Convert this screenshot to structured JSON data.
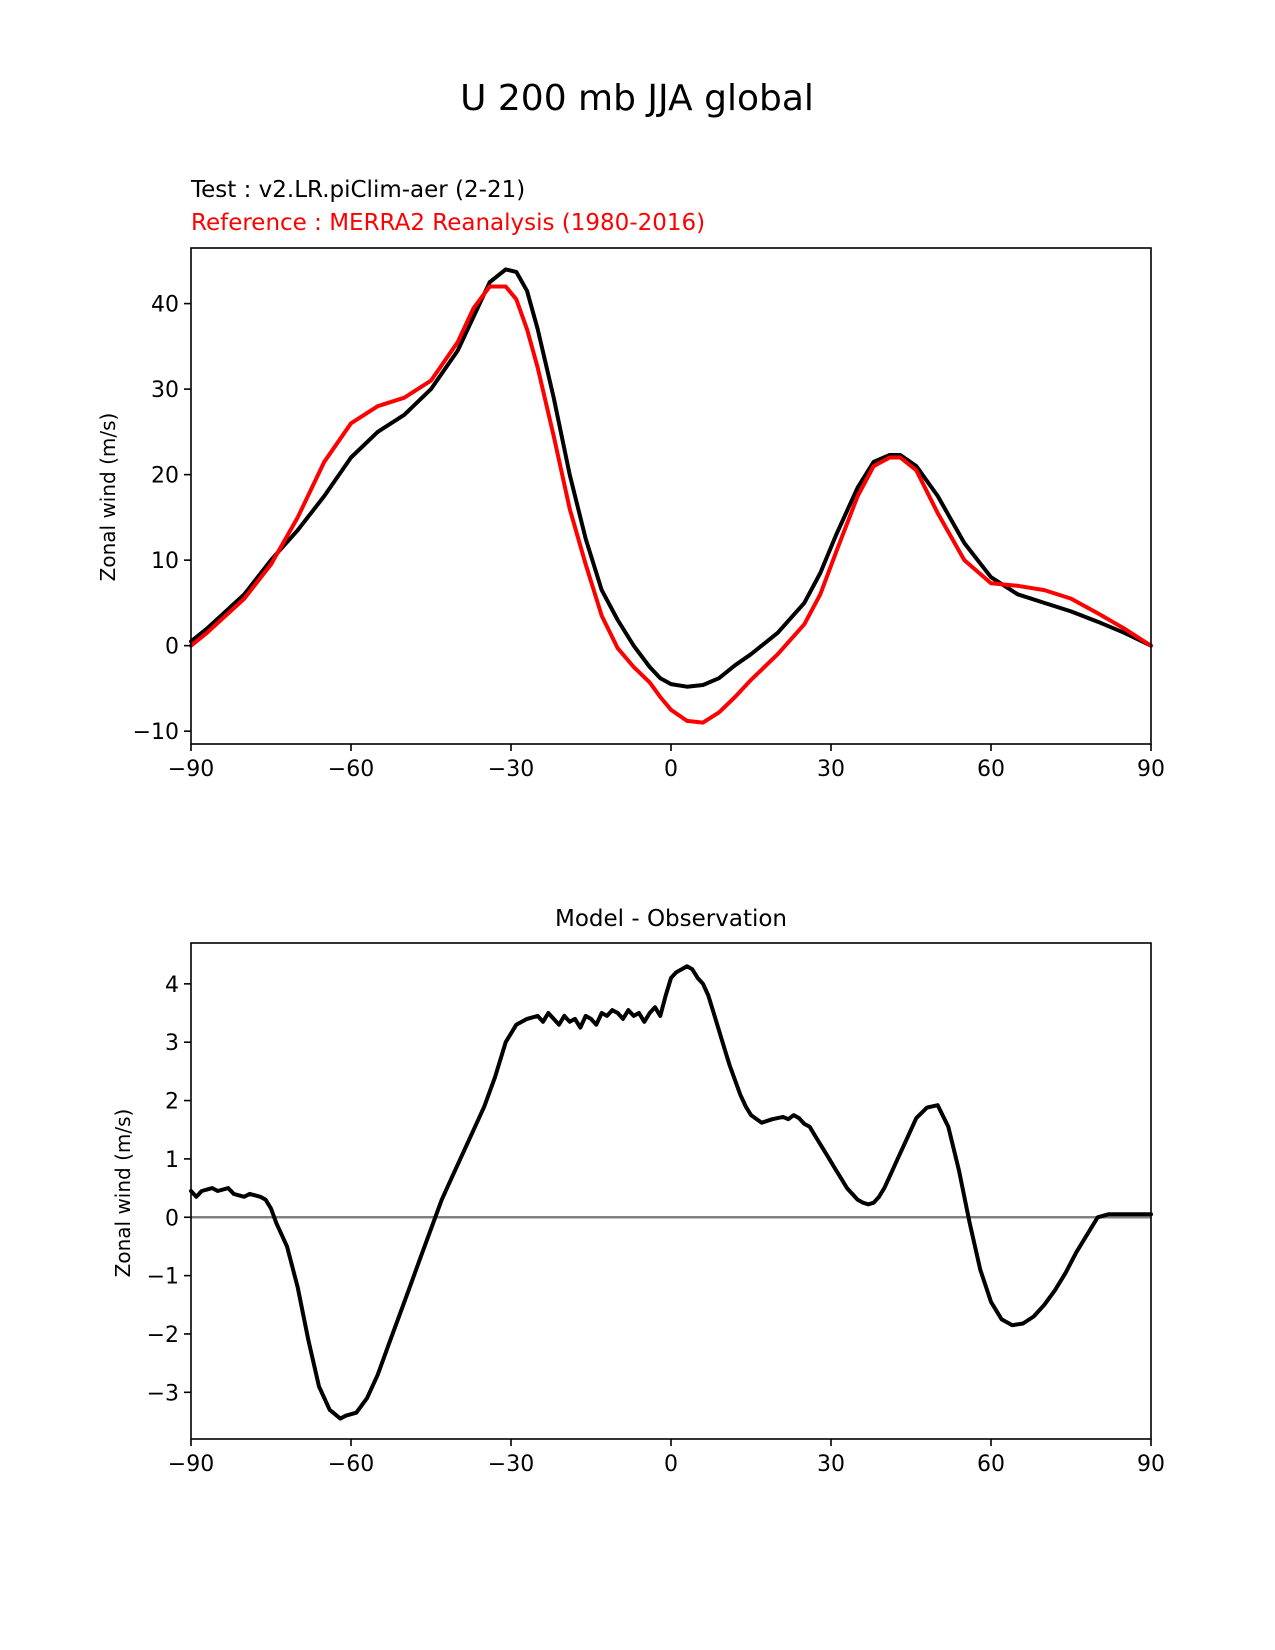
{
  "figure": {
    "title": "U 200 mb JJA global"
  },
  "chart_data": [
    {
      "type": "line",
      "test_label": "Test : v2.LR.piClim-aer (2-21)",
      "reference_label": "Reference : MERRA2 Reanalysis (1980-2016)",
      "xlabel": "",
      "ylabel": "Zonal wind (m/s)",
      "xlim": [
        -90,
        90
      ],
      "ylim": [
        -11.5,
        46.5
      ],
      "xticks": [
        -90,
        -60,
        -30,
        0,
        30,
        60,
        90
      ],
      "xtick_labels": [
        "−90",
        "−60",
        "−30",
        "0",
        "30",
        "60",
        "90"
      ],
      "yticks": [
        -10,
        0,
        10,
        20,
        30,
        40
      ],
      "ytick_labels": [
        "−10",
        "0",
        "10",
        "20",
        "30",
        "40"
      ],
      "grid": false,
      "series": [
        {
          "color": "#000000",
          "x": [
            -90,
            -87,
            -80,
            -75,
            -70,
            -65,
            -60,
            -55,
            -50,
            -45,
            -40,
            -37,
            -34,
            -31,
            -29,
            -27,
            -25,
            -22,
            -19,
            -16,
            -13,
            -10,
            -7,
            -4,
            -2,
            0,
            3,
            6,
            9,
            12,
            15,
            20,
            25,
            28,
            31,
            35,
            38,
            41,
            43,
            46,
            50,
            55,
            60,
            65,
            70,
            75,
            80,
            85,
            90
          ],
          "y": [
            0.5,
            2,
            6,
            10,
            13.5,
            17.5,
            22,
            25,
            27,
            30,
            34.5,
            38.5,
            42.5,
            44,
            43.7,
            41.5,
            37,
            29,
            20,
            12.5,
            6.5,
            3,
            0,
            -2.5,
            -3.8,
            -4.5,
            -4.8,
            -4.6,
            -3.8,
            -2.3,
            -1,
            1.5,
            5,
            8.5,
            13,
            18.5,
            21.5,
            22.3,
            22.3,
            21,
            17.5,
            12,
            8,
            6,
            5,
            4,
            2.8,
            1.5,
            0
          ]
        },
        {
          "color": "#ff0000",
          "x": [
            -90,
            -87,
            -80,
            -75,
            -70,
            -65,
            -60,
            -55,
            -50,
            -45,
            -40,
            -37,
            -34,
            -31,
            -29,
            -27,
            -25,
            -22,
            -19,
            -16,
            -13,
            -10,
            -7,
            -4,
            -2,
            0,
            3,
            6,
            9,
            12,
            15,
            20,
            25,
            28,
            31,
            35,
            38,
            41,
            43,
            46,
            50,
            55,
            60,
            65,
            70,
            75,
            80,
            85,
            90
          ],
          "y": [
            0,
            1.5,
            5.5,
            9.5,
            15,
            21.5,
            26,
            28,
            29,
            31,
            35.5,
            39.5,
            42,
            42,
            40.5,
            37,
            32.5,
            24.5,
            16,
            9.5,
            3.5,
            -0.3,
            -2.5,
            -4.3,
            -6,
            -7.5,
            -8.8,
            -9,
            -7.8,
            -6,
            -4,
            -1,
            2.5,
            6,
            11,
            17.5,
            21,
            22,
            22,
            20.5,
            15.5,
            10,
            7.3,
            7,
            6.5,
            5.5,
            3.8,
            2,
            0
          ]
        }
      ]
    },
    {
      "type": "line",
      "title": "Model - Observation",
      "xlabel": "",
      "ylabel": "Zonal wind (m/s)",
      "xlim": [
        -90,
        90
      ],
      "ylim": [
        -3.8,
        4.7
      ],
      "xticks": [
        -90,
        -60,
        -30,
        0,
        30,
        60,
        90
      ],
      "xtick_labels": [
        "−90",
        "−60",
        "−30",
        "0",
        "30",
        "60",
        "90"
      ],
      "yticks": [
        -3,
        -2,
        -1,
        0,
        1,
        2,
        3,
        4
      ],
      "ytick_labels": [
        "−3",
        "−2",
        "−1",
        "0",
        "1",
        "2",
        "3",
        "4"
      ],
      "grid": false,
      "zero_line_color": "#808080",
      "series": [
        {
          "color": "#000000",
          "x": [
            -90,
            -89,
            -88,
            -86,
            -85,
            -83,
            -82,
            -80,
            -79,
            -77,
            -76,
            -75,
            -74,
            -72,
            -70,
            -68,
            -66,
            -64,
            -62,
            -61,
            -59,
            -57,
            -55,
            -53,
            -51,
            -49,
            -47,
            -45,
            -43,
            -41,
            -39,
            -37,
            -35,
            -33,
            -31,
            -29,
            -27,
            -25,
            -24,
            -23,
            -22,
            -21,
            -20,
            -19,
            -18,
            -17,
            -16,
            -15,
            -14,
            -13,
            -12,
            -11,
            -10,
            -9,
            -8,
            -7,
            -6,
            -5,
            -4,
            -3,
            -2,
            -1,
            0,
            1,
            2,
            3,
            4,
            5,
            6,
            7,
            8,
            9,
            10,
            11,
            12,
            13,
            14,
            15,
            17,
            19,
            21,
            22,
            23,
            24,
            25,
            26,
            27,
            28,
            29,
            30,
            31,
            32,
            33,
            34,
            35,
            36,
            37,
            38,
            39,
            40,
            41,
            42,
            43,
            44,
            45,
            46,
            48,
            50,
            52,
            54,
            56,
            58,
            60,
            62,
            64,
            66,
            68,
            70,
            72,
            74,
            76,
            78,
            80,
            82,
            84,
            86,
            88,
            89,
            90
          ],
          "y": [
            0.45,
            0.35,
            0.45,
            0.5,
            0.45,
            0.5,
            0.4,
            0.35,
            0.4,
            0.35,
            0.3,
            0.15,
            -0.1,
            -0.5,
            -1.2,
            -2.1,
            -2.9,
            -3.3,
            -3.45,
            -3.4,
            -3.35,
            -3.1,
            -2.7,
            -2.2,
            -1.7,
            -1.2,
            -0.7,
            -0.2,
            0.3,
            0.7,
            1.1,
            1.5,
            1.9,
            2.4,
            3.0,
            3.3,
            3.4,
            3.45,
            3.35,
            3.5,
            3.4,
            3.3,
            3.45,
            3.35,
            3.4,
            3.25,
            3.45,
            3.4,
            3.3,
            3.5,
            3.45,
            3.55,
            3.5,
            3.4,
            3.55,
            3.45,
            3.5,
            3.35,
            3.5,
            3.6,
            3.45,
            3.8,
            4.1,
            4.2,
            4.25,
            4.3,
            4.25,
            4.1,
            4.0,
            3.8,
            3.5,
            3.2,
            2.9,
            2.6,
            2.35,
            2.1,
            1.9,
            1.75,
            1.62,
            1.68,
            1.72,
            1.68,
            1.75,
            1.7,
            1.6,
            1.55,
            1.4,
            1.25,
            1.1,
            0.95,
            0.8,
            0.65,
            0.5,
            0.4,
            0.3,
            0.25,
            0.22,
            0.25,
            0.35,
            0.5,
            0.7,
            0.9,
            1.1,
            1.3,
            1.5,
            1.7,
            1.88,
            1.92,
            1.55,
            0.8,
            -0.1,
            -0.9,
            -1.45,
            -1.75,
            -1.85,
            -1.82,
            -1.7,
            -1.5,
            -1.25,
            -0.95,
            -0.6,
            -0.3,
            0.0,
            0.05,
            0.05,
            0.05,
            0.05,
            0.05,
            0.05
          ]
        }
      ]
    }
  ]
}
